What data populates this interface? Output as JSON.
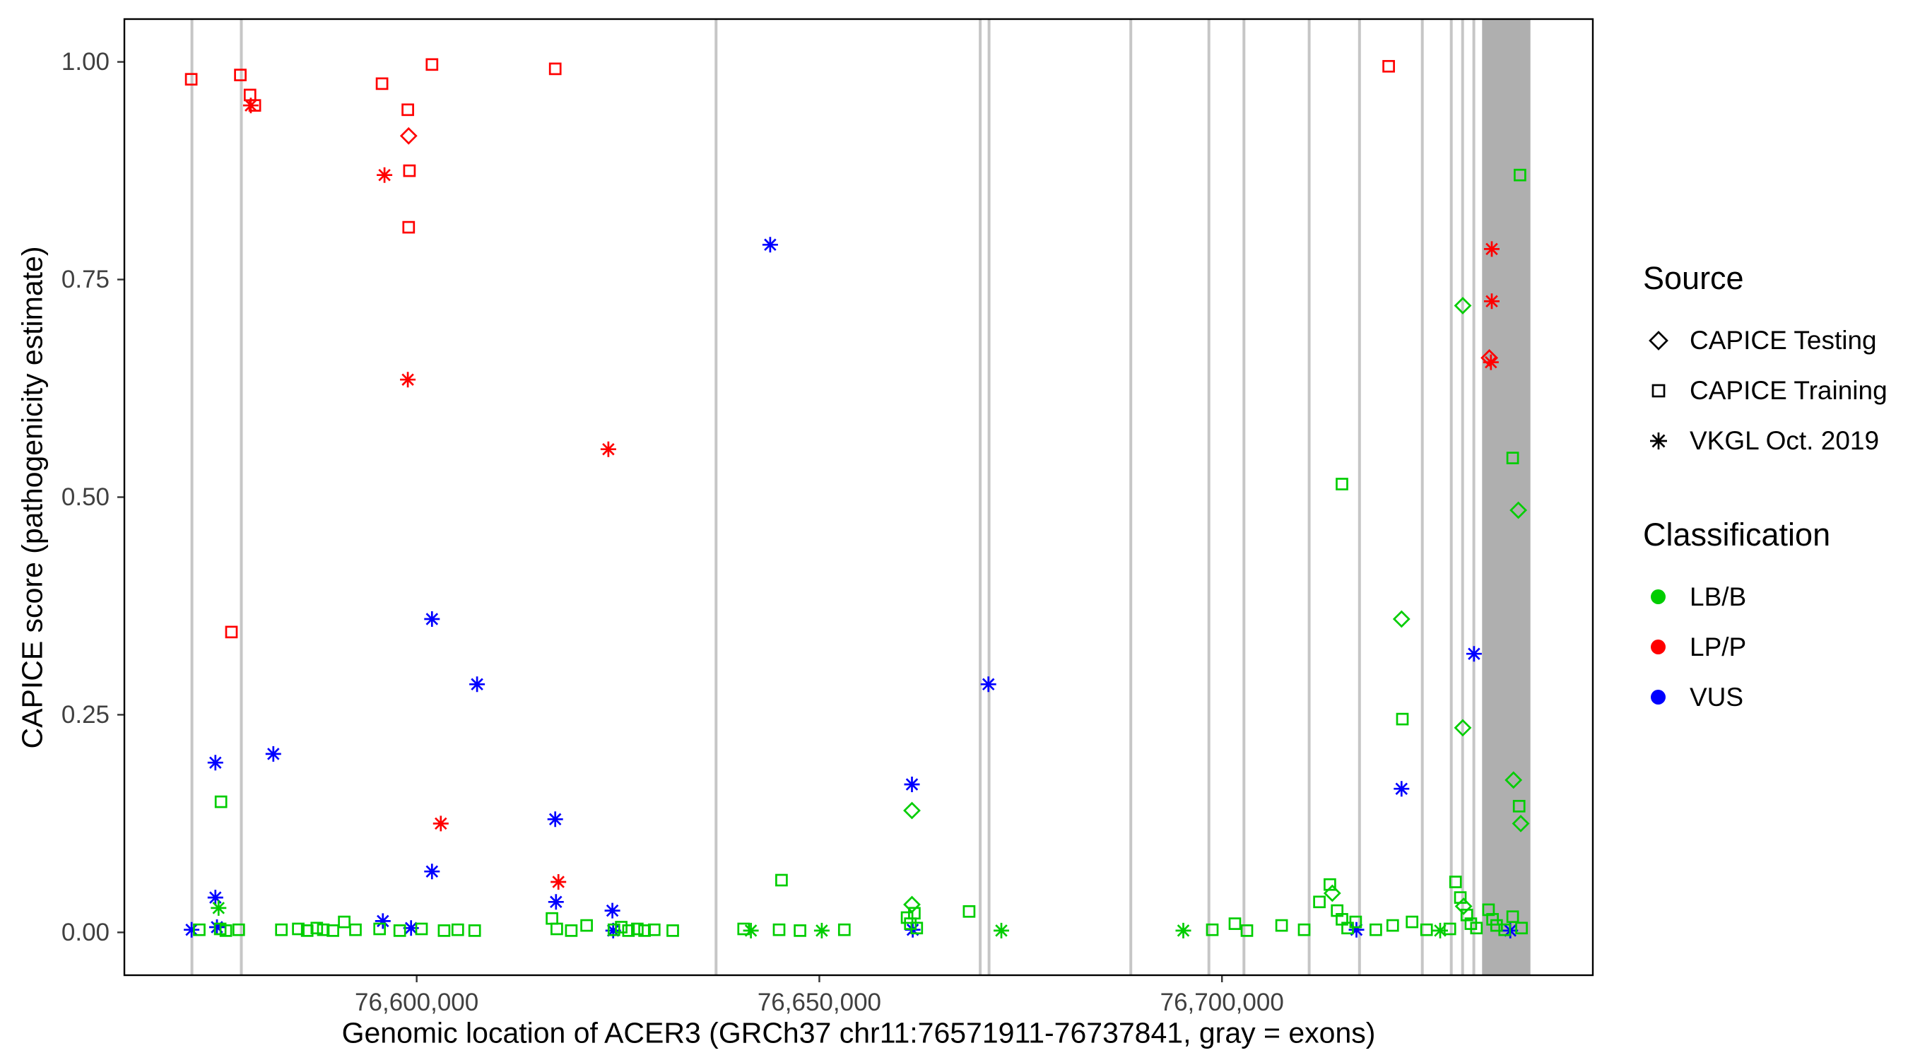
{
  "figure": {
    "x_axis_title": "Genomic location of ACER3 (GRCh37 chr11:76571911-76737841, gray = exons)",
    "y_axis_title": "CAPICE score (pathogenicity estimate)"
  },
  "legend": {
    "source": {
      "title": "Source",
      "items": [
        {
          "label": "CAPICE Testing",
          "symbol": "diamond"
        },
        {
          "label": "CAPICE Training",
          "symbol": "square"
        },
        {
          "label": "VKGL Oct. 2019",
          "symbol": "asterisk"
        }
      ]
    },
    "classification": {
      "title": "Classification",
      "items": [
        {
          "label": "LB/B",
          "color": "#00CD00"
        },
        {
          "label": "LP/P",
          "color": "#FF0000"
        },
        {
          "label": "VUS",
          "color": "#0000FF"
        }
      ]
    }
  },
  "chart_data": {
    "type": "scatter",
    "title": "",
    "xlabel": "Genomic location of ACER3 (GRCh37 chr11:76571911-76737841, gray = exons)",
    "ylabel": "CAPICE score (pathogenicity estimate)",
    "gene_region": {
      "chromosome": "chr11",
      "start": 76571911,
      "end": 76737841,
      "build": "GRCh37",
      "gene": "ACER3"
    },
    "x_domain": [
      76563614,
      76746138
    ],
    "y_domain": [
      -0.05,
      1.05
    ],
    "grid": false,
    "legend_position": "right",
    "x_ticks": [
      {
        "value": 76600000,
        "label": "76,600,000"
      },
      {
        "value": 76650000,
        "label": "76,650,000"
      },
      {
        "value": 76700000,
        "label": "76,700,000"
      }
    ],
    "y_ticks": [
      {
        "value": 0.0,
        "label": "0.00"
      },
      {
        "value": 0.25,
        "label": "0.25"
      },
      {
        "value": 0.5,
        "label": "0.50"
      },
      {
        "value": 0.75,
        "label": "0.75"
      },
      {
        "value": 1.0,
        "label": "1.00"
      }
    ],
    "exon_line_color": "#C6C6C6",
    "exon_band_color": "#AFAFAF",
    "class_colors": {
      "LB/B": "#00CD00",
      "LP/P": "#FF0000",
      "VUS": "#0000FF"
    },
    "source_symbols": {
      "testing": "diamond",
      "training": "square",
      "vkgl": "asterisk"
    },
    "exons": [
      {
        "start": 76571911,
        "end": 76572260
      },
      {
        "start": 76578050,
        "end": 76578400
      },
      {
        "start": 76637000,
        "end": 76637350
      },
      {
        "start": 76669800,
        "end": 76670150
      },
      {
        "start": 76670900,
        "end": 76671250
      },
      {
        "start": 76688500,
        "end": 76688850
      },
      {
        "start": 76698200,
        "end": 76698550
      },
      {
        "start": 76702550,
        "end": 76702900
      },
      {
        "start": 76710650,
        "end": 76711000
      },
      {
        "start": 76716900,
        "end": 76717250
      },
      {
        "start": 76724700,
        "end": 76725050
      },
      {
        "start": 76728300,
        "end": 76728650
      },
      {
        "start": 76729700,
        "end": 76730050
      },
      {
        "start": 76731100,
        "end": 76731450
      },
      {
        "start": 76732300,
        "end": 76738300,
        "wide": true
      }
    ],
    "points_format": [
      "genomic_position",
      "capice_score",
      "source",
      "classification"
    ],
    "points": [
      [
        76572000,
        0.98,
        "training",
        "LP/P"
      ],
      [
        76578100,
        0.985,
        "training",
        "LP/P"
      ],
      [
        76579300,
        0.962,
        "training",
        "LP/P"
      ],
      [
        76579900,
        0.95,
        "training",
        "LP/P"
      ],
      [
        76577000,
        0.345,
        "training",
        "LP/P"
      ],
      [
        76595700,
        0.975,
        "training",
        "LP/P"
      ],
      [
        76601900,
        0.997,
        "training",
        "LP/P"
      ],
      [
        76598900,
        0.945,
        "training",
        "LP/P"
      ],
      [
        76599100,
        0.875,
        "training",
        "LP/P"
      ],
      [
        76599000,
        0.81,
        "training",
        "LP/P"
      ],
      [
        76617200,
        0.992,
        "training",
        "LP/P"
      ],
      [
        76720700,
        0.995,
        "training",
        "LP/P"
      ],
      [
        76599000,
        0.915,
        "testing",
        "LP/P"
      ],
      [
        76733200,
        0.66,
        "testing",
        "LP/P"
      ],
      [
        76579400,
        0.95,
        "vkgl",
        "LP/P"
      ],
      [
        76596000,
        0.87,
        "vkgl",
        "LP/P"
      ],
      [
        76598900,
        0.635,
        "vkgl",
        "LP/P"
      ],
      [
        76623800,
        0.555,
        "vkgl",
        "LP/P"
      ],
      [
        76603000,
        0.125,
        "vkgl",
        "LP/P"
      ],
      [
        76617600,
        0.058,
        "vkgl",
        "LP/P"
      ],
      [
        76733500,
        0.785,
        "vkgl",
        "LP/P"
      ],
      [
        76733500,
        0.725,
        "vkgl",
        "LP/P"
      ],
      [
        76733400,
        0.655,
        "vkgl",
        "LP/P"
      ],
      [
        76643900,
        0.79,
        "vkgl",
        "VUS"
      ],
      [
        76601900,
        0.36,
        "vkgl",
        "VUS"
      ],
      [
        76607500,
        0.285,
        "vkgl",
        "VUS"
      ],
      [
        76671000,
        0.285,
        "vkgl",
        "VUS"
      ],
      [
        76575000,
        0.195,
        "vkgl",
        "VUS"
      ],
      [
        76582200,
        0.205,
        "vkgl",
        "VUS"
      ],
      [
        76617200,
        0.13,
        "vkgl",
        "VUS"
      ],
      [
        76661500,
        0.17,
        "vkgl",
        "VUS"
      ],
      [
        76601900,
        0.07,
        "vkgl",
        "VUS"
      ],
      [
        76575000,
        0.04,
        "vkgl",
        "VUS"
      ],
      [
        76617300,
        0.035,
        "vkgl",
        "VUS"
      ],
      [
        76624300,
        0.025,
        "vkgl",
        "VUS"
      ],
      [
        76722300,
        0.165,
        "vkgl",
        "VUS"
      ],
      [
        76731300,
        0.32,
        "vkgl",
        "VUS"
      ],
      [
        76572050,
        0.003,
        "vkgl",
        "VUS"
      ],
      [
        76575200,
        0.006,
        "vkgl",
        "VUS"
      ],
      [
        76595800,
        0.013,
        "vkgl",
        "VUS"
      ],
      [
        76599300,
        0.005,
        "vkgl",
        "VUS"
      ],
      [
        76624400,
        0.002,
        "vkgl",
        "VUS"
      ],
      [
        76661600,
        0.003,
        "vkgl",
        "VUS"
      ],
      [
        76716700,
        0.003,
        "vkgl",
        "VUS"
      ],
      [
        76735800,
        0.002,
        "vkgl",
        "VUS"
      ],
      [
        76737000,
        0.87,
        "training",
        "LB/B"
      ],
      [
        76729900,
        0.72,
        "testing",
        "LB/B"
      ],
      [
        76714900,
        0.515,
        "training",
        "LB/B"
      ],
      [
        76736100,
        0.545,
        "training",
        "LB/B"
      ],
      [
        76736800,
        0.485,
        "testing",
        "LB/B"
      ],
      [
        76722300,
        0.36,
        "testing",
        "LB/B"
      ],
      [
        76722400,
        0.245,
        "training",
        "LB/B"
      ],
      [
        76729900,
        0.235,
        "testing",
        "LB/B"
      ],
      [
        76736200,
        0.175,
        "testing",
        "LB/B"
      ],
      [
        76736900,
        0.145,
        "training",
        "LB/B"
      ],
      [
        76737100,
        0.125,
        "testing",
        "LB/B"
      ],
      [
        76575700,
        0.15,
        "training",
        "LB/B"
      ],
      [
        76661500,
        0.14,
        "testing",
        "LB/B"
      ],
      [
        76645300,
        0.06,
        "training",
        "LB/B"
      ],
      [
        76661500,
        0.032,
        "testing",
        "LB/B"
      ],
      [
        76661800,
        0.022,
        "training",
        "LB/B"
      ],
      [
        76575400,
        0.028,
        "vkgl",
        "LB/B"
      ],
      [
        76668600,
        0.024,
        "training",
        "LB/B"
      ],
      [
        76573000,
        0.003,
        "training",
        "LB/B"
      ],
      [
        76575600,
        0.004,
        "training",
        "LB/B"
      ],
      [
        76576300,
        0.002,
        "training",
        "LB/B"
      ],
      [
        76577900,
        0.003,
        "training",
        "LB/B"
      ],
      [
        76583200,
        0.003,
        "training",
        "LB/B"
      ],
      [
        76585300,
        0.004,
        "training",
        "LB/B"
      ],
      [
        76586400,
        0.002,
        "training",
        "LB/B"
      ],
      [
        76587600,
        0.005,
        "training",
        "LB/B"
      ],
      [
        76588400,
        0.003,
        "training",
        "LB/B"
      ],
      [
        76589600,
        0.002,
        "training",
        "LB/B"
      ],
      [
        76591000,
        0.012,
        "training",
        "LB/B"
      ],
      [
        76592400,
        0.003,
        "training",
        "LB/B"
      ],
      [
        76595400,
        0.004,
        "training",
        "LB/B"
      ],
      [
        76597900,
        0.002,
        "training",
        "LB/B"
      ],
      [
        76600600,
        0.004,
        "training",
        "LB/B"
      ],
      [
        76603400,
        0.002,
        "training",
        "LB/B"
      ],
      [
        76605100,
        0.003,
        "training",
        "LB/B"
      ],
      [
        76607200,
        0.002,
        "training",
        "LB/B"
      ],
      [
        76616800,
        0.016,
        "training",
        "LB/B"
      ],
      [
        76617400,
        0.004,
        "training",
        "LB/B"
      ],
      [
        76619200,
        0.002,
        "training",
        "LB/B"
      ],
      [
        76621100,
        0.008,
        "training",
        "LB/B"
      ],
      [
        76624500,
        0.003,
        "training",
        "LB/B"
      ],
      [
        76625400,
        0.006,
        "training",
        "LB/B"
      ],
      [
        76626300,
        0.002,
        "training",
        "LB/B"
      ],
      [
        76627400,
        0.004,
        "training",
        "LB/B"
      ],
      [
        76628300,
        0.002,
        "training",
        "LB/B"
      ],
      [
        76629500,
        0.003,
        "training",
        "LB/B"
      ],
      [
        76631800,
        0.002,
        "training",
        "LB/B"
      ],
      [
        76640600,
        0.004,
        "training",
        "LB/B"
      ],
      [
        76641500,
        0.002,
        "vkgl",
        "LB/B"
      ],
      [
        76645000,
        0.003,
        "training",
        "LB/B"
      ],
      [
        76647600,
        0.002,
        "training",
        "LB/B"
      ],
      [
        76650300,
        0.002,
        "vkgl",
        "LB/B"
      ],
      [
        76653100,
        0.003,
        "training",
        "LB/B"
      ],
      [
        76660900,
        0.017,
        "training",
        "LB/B"
      ],
      [
        76661300,
        0.01,
        "training",
        "LB/B"
      ],
      [
        76662100,
        0.005,
        "training",
        "LB/B"
      ],
      [
        76672600,
        0.002,
        "vkgl",
        "LB/B"
      ],
      [
        76695200,
        0.002,
        "vkgl",
        "LB/B"
      ],
      [
        76698800,
        0.003,
        "training",
        "LB/B"
      ],
      [
        76701600,
        0.01,
        "training",
        "LB/B"
      ],
      [
        76703100,
        0.002,
        "training",
        "LB/B"
      ],
      [
        76707400,
        0.008,
        "training",
        "LB/B"
      ],
      [
        76710200,
        0.003,
        "training",
        "LB/B"
      ],
      [
        76712100,
        0.035,
        "training",
        "LB/B"
      ],
      [
        76713400,
        0.055,
        "training",
        "LB/B"
      ],
      [
        76713700,
        0.045,
        "testing",
        "LB/B"
      ],
      [
        76714300,
        0.025,
        "training",
        "LB/B"
      ],
      [
        76714900,
        0.015,
        "training",
        "LB/B"
      ],
      [
        76715600,
        0.005,
        "training",
        "LB/B"
      ],
      [
        76716600,
        0.012,
        "training",
        "LB/B"
      ],
      [
        76719100,
        0.003,
        "training",
        "LB/B"
      ],
      [
        76721200,
        0.008,
        "training",
        "LB/B"
      ],
      [
        76723600,
        0.012,
        "training",
        "LB/B"
      ],
      [
        76725400,
        0.003,
        "training",
        "LB/B"
      ],
      [
        76727100,
        0.002,
        "vkgl",
        "LB/B"
      ],
      [
        76728300,
        0.004,
        "training",
        "LB/B"
      ],
      [
        76729000,
        0.058,
        "training",
        "LB/B"
      ],
      [
        76729600,
        0.04,
        "training",
        "LB/B"
      ],
      [
        76730000,
        0.03,
        "testing",
        "LB/B"
      ],
      [
        76730400,
        0.02,
        "training",
        "LB/B"
      ],
      [
        76730900,
        0.01,
        "training",
        "LB/B"
      ],
      [
        76731600,
        0.005,
        "training",
        "LB/B"
      ],
      [
        76733100,
        0.026,
        "training",
        "LB/B"
      ],
      [
        76733600,
        0.015,
        "training",
        "LB/B"
      ],
      [
        76734100,
        0.008,
        "training",
        "LB/B"
      ],
      [
        76735100,
        0.003,
        "training",
        "LB/B"
      ],
      [
        76736100,
        0.018,
        "training",
        "LB/B"
      ],
      [
        76737200,
        0.005,
        "training",
        "LB/B"
      ]
    ]
  }
}
